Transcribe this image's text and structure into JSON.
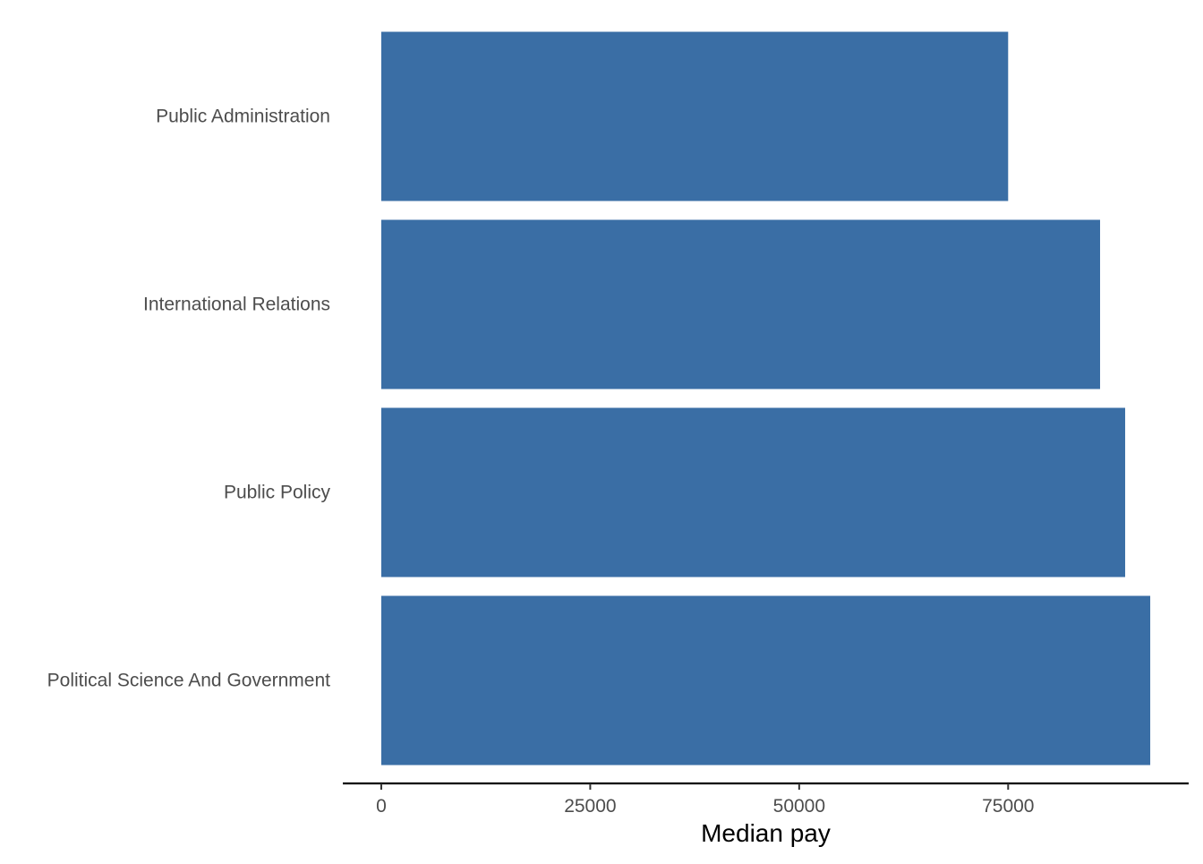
{
  "chart_data": {
    "type": "bar",
    "orientation": "horizontal",
    "categories": [
      "Public Administration",
      "International Relations",
      "Public Policy",
      "Political Science And Government"
    ],
    "values": [
      75000,
      86000,
      89000,
      92000
    ],
    "xlabel": "Median pay",
    "ylabel": "",
    "title": "",
    "xlim": [
      -4600,
      96600
    ],
    "xticks": [
      0,
      25000,
      50000,
      75000
    ],
    "xtick_labels": [
      "0",
      "25000",
      "50000",
      "75000"
    ],
    "grid": false,
    "legend": "none",
    "bar_color": "#3a6ea5",
    "axis_color": "#000000"
  }
}
